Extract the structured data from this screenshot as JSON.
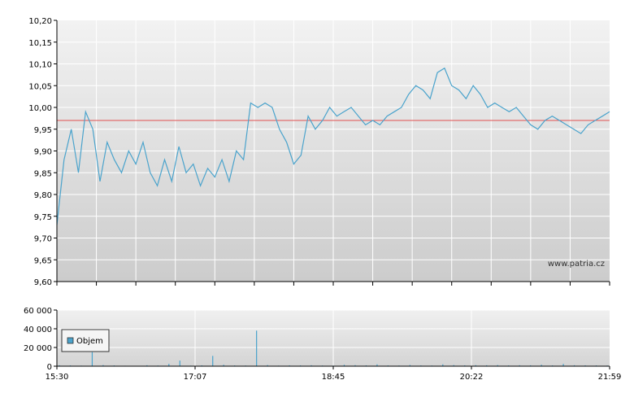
{
  "chart_data": [
    {
      "type": "line",
      "series": [
        {
          "values": [
            9.73,
            9.88,
            9.95,
            9.85,
            9.99,
            9.95,
            9.83,
            9.92,
            9.88,
            9.85,
            9.9,
            9.87,
            9.92,
            9.85,
            9.82,
            9.88,
            9.83,
            9.91,
            9.85,
            9.87,
            9.82,
            9.86,
            9.84,
            9.88,
            9.83,
            9.9,
            9.88,
            10.01,
            10.0,
            10.01,
            10.0,
            9.95,
            9.92,
            9.87,
            9.89,
            9.98,
            9.95,
            9.97,
            10.0,
            9.98,
            9.99,
            10.0,
            9.98,
            9.96,
            9.97,
            9.96,
            9.98,
            9.99,
            10.0,
            10.03,
            10.05,
            10.04,
            10.02,
            10.08,
            10.09,
            10.05,
            10.04,
            10.02,
            10.05,
            10.03,
            10.0,
            10.01,
            10.0,
            9.99,
            10.0,
            9.98,
            9.96,
            9.95,
            9.97,
            9.98,
            9.97,
            9.96,
            9.95,
            9.94,
            9.96,
            9.97,
            9.98,
            9.99
          ]
        }
      ],
      "x_ticks": [
        "15:30",
        "17:07",
        "18:45",
        "20:22",
        "21:59"
      ],
      "y_tick_labels": [
        "9,60",
        "9,65",
        "9,70",
        "9,75",
        "9,80",
        "9,85",
        "9,90",
        "9,95",
        "10,00",
        "10,05",
        "10,10",
        "10,15",
        "10,20"
      ],
      "ylim": [
        9.6,
        10.2
      ],
      "reference_line": 9.97,
      "watermark": "www.patria.cz",
      "grid": true,
      "colors": {
        "line": "#4aa3cc",
        "reference": "#e05050",
        "bg_top": "#f2f2f2",
        "bg_bottom": "#cfcfcf"
      }
    },
    {
      "type": "bar",
      "series": [
        {
          "name": "Objem",
          "values": [
            1000,
            800,
            600,
            15000,
            1200,
            800,
            500,
            400,
            1000,
            700,
            2500,
            6000,
            600,
            900,
            11000,
            1500,
            800,
            700,
            38000,
            1200,
            600,
            900,
            800,
            1000,
            700,
            600,
            1500,
            1100,
            900,
            2000,
            800,
            700,
            1300,
            800,
            700,
            2000,
            1200,
            900,
            1100,
            1000,
            1200,
            800,
            1000,
            900,
            1600,
            800,
            2500,
            1000,
            900,
            800,
            700
          ]
        }
      ],
      "x_ticks": [
        "15:30",
        "17:07",
        "18:45",
        "20:22",
        "21:59"
      ],
      "y_tick_labels": [
        "0",
        "20 000",
        "40 000",
        "60 000"
      ],
      "ylim": [
        0,
        60000
      ],
      "legend": "top-left",
      "grid": true,
      "colors": {
        "bar": "#4aa3cc"
      }
    }
  ]
}
